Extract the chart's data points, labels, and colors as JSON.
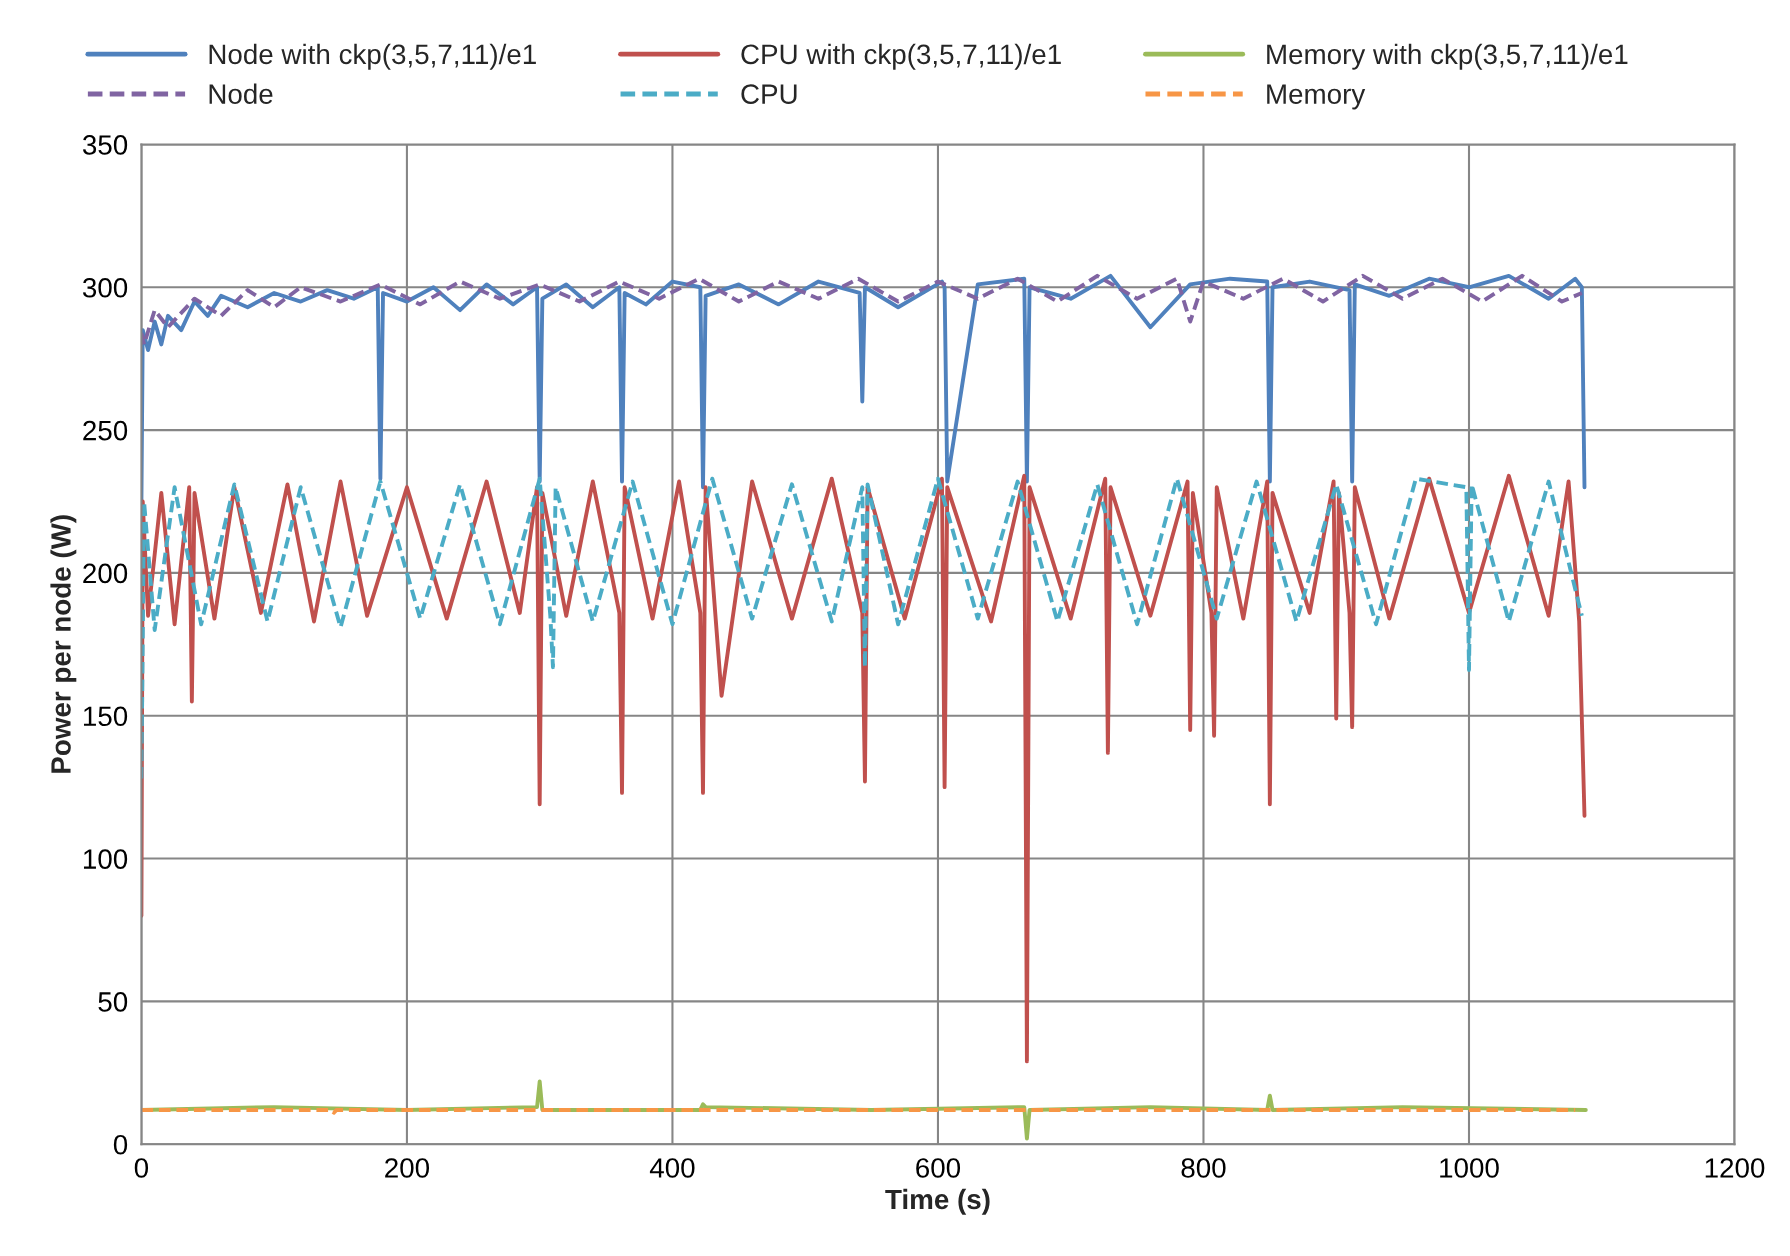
{
  "chart_data": {
    "type": "line",
    "xlabel": "Time (s)",
    "ylabel": "Power per node (W)",
    "xlim": [
      0,
      1200
    ],
    "xticks": [
      0,
      200,
      400,
      600,
      800,
      1000,
      1200
    ],
    "ylim": [
      0,
      350
    ],
    "yticks": [
      0,
      50,
      100,
      150,
      200,
      250,
      300,
      350
    ],
    "grid": true,
    "legend": "top",
    "marker": "none",
    "series": [
      {
        "name": "Node with ckp(3,5,7,11)/e1",
        "color": "#4f81bd",
        "line_style": "solid",
        "x": [
          0,
          1,
          5,
          10,
          15,
          20,
          30,
          40,
          50,
          60,
          80,
          100,
          120,
          140,
          160,
          178,
          180,
          182,
          200,
          220,
          240,
          260,
          280,
          298,
          300,
          302,
          320,
          340,
          360,
          362,
          364,
          380,
          400,
          421,
          423,
          425,
          450,
          480,
          510,
          541,
          543,
          545,
          570,
          603,
          605,
          607,
          630,
          665,
          667,
          669,
          700,
          730,
          760,
          790,
          820,
          848,
          850,
          852,
          880,
          910,
          912,
          914,
          940,
          970,
          1000,
          1030,
          1060,
          1080,
          1085,
          1087
        ],
        "values": [
          225,
          285,
          278,
          288,
          280,
          290,
          285,
          295,
          290,
          297,
          293,
          298,
          295,
          299,
          296,
          300,
          233,
          298,
          295,
          300,
          292,
          301,
          294,
          300,
          232,
          296,
          301,
          293,
          300,
          232,
          298,
          294,
          302,
          300,
          230,
          297,
          301,
          294,
          302,
          298,
          260,
          300,
          293,
          302,
          300,
          232,
          301,
          303,
          232,
          300,
          296,
          304,
          286,
          301,
          303,
          302,
          232,
          300,
          302,
          299,
          232,
          301,
          297,
          303,
          300,
          304,
          296,
          303,
          300,
          230
        ]
      },
      {
        "name": "CPU with ckp(3,5,7,11)/e1",
        "color": "#c0504d",
        "line_style": "solid",
        "x": [
          0,
          1,
          5,
          15,
          25,
          36,
          38,
          40,
          55,
          70,
          90,
          110,
          130,
          150,
          170,
          200,
          230,
          260,
          285,
          298,
          300,
          302,
          320,
          340,
          360,
          362,
          364,
          385,
          405,
          421,
          423,
          425,
          437,
          460,
          490,
          520,
          543,
          545,
          547,
          575,
          603,
          605,
          607,
          640,
          665,
          667,
          669,
          700,
          726,
          728,
          730,
          760,
          788,
          790,
          792,
          806,
          808,
          810,
          830,
          848,
          850,
          852,
          880,
          898,
          900,
          902,
          910,
          912,
          914,
          940,
          970,
          1000,
          1030,
          1060,
          1075,
          1083,
          1087
        ],
        "values": [
          80,
          225,
          185,
          228,
          182,
          230,
          155,
          228,
          184,
          230,
          186,
          231,
          183,
          232,
          185,
          230,
          184,
          232,
          186,
          230,
          119,
          228,
          185,
          232,
          186,
          123,
          230,
          184,
          232,
          186,
          123,
          230,
          157,
          232,
          184,
          233,
          186,
          127,
          230,
          184,
          233,
          125,
          230,
          183,
          234,
          29,
          230,
          184,
          233,
          137,
          230,
          185,
          232,
          145,
          228,
          186,
          143,
          230,
          184,
          232,
          119,
          228,
          186,
          232,
          149,
          228,
          186,
          146,
          230,
          184,
          233,
          186,
          234,
          185,
          232,
          183,
          115
        ]
      },
      {
        "name": "Memory with ckp(3,5,7,11)/e1",
        "color": "#9bbb59",
        "line_style": "solid",
        "x": [
          0,
          100,
          200,
          298,
          300,
          302,
          421,
          423,
          425,
          550,
          665,
          667,
          669,
          760,
          848,
          850,
          852,
          950,
          1088
        ],
        "values": [
          12,
          13,
          12,
          13,
          22,
          12,
          12,
          14,
          13,
          12,
          13,
          2,
          12,
          13,
          12,
          17,
          12,
          13,
          12
        ]
      },
      {
        "name": "Node",
        "color": "#8064a2",
        "line_style": "dashed",
        "x": [
          0,
          2,
          10,
          20,
          40,
          60,
          80,
          100,
          120,
          150,
          180,
          210,
          240,
          270,
          300,
          330,
          360,
          390,
          420,
          450,
          480,
          510,
          540,
          570,
          600,
          630,
          660,
          690,
          720,
          750,
          780,
          790,
          800,
          830,
          860,
          890,
          920,
          950,
          980,
          1010,
          1040,
          1070,
          1085
        ],
        "values": [
          284,
          280,
          292,
          286,
          296,
          290,
          299,
          293,
          300,
          295,
          301,
          294,
          302,
          296,
          301,
          295,
          302,
          296,
          303,
          295,
          302,
          296,
          303,
          295,
          302,
          296,
          303,
          295,
          304,
          296,
          303,
          288,
          302,
          296,
          303,
          295,
          304,
          296,
          303,
          295,
          304,
          295,
          298
        ]
      },
      {
        "name": "CPU",
        "color": "#4bacc6",
        "line_style": "dashed",
        "x": [
          0,
          2,
          10,
          25,
          45,
          70,
          95,
          120,
          150,
          180,
          210,
          240,
          270,
          300,
          308,
          310,
          312,
          340,
          370,
          400,
          430,
          460,
          490,
          520,
          543,
          545,
          547,
          570,
          600,
          630,
          660,
          690,
          720,
          750,
          780,
          810,
          840,
          870,
          900,
          930,
          960,
          998,
          1000,
          1002,
          1030,
          1060,
          1085
        ],
        "values": [
          128,
          225,
          180,
          230,
          182,
          231,
          183,
          230,
          181,
          232,
          184,
          231,
          182,
          233,
          185,
          167,
          230,
          183,
          232,
          182,
          233,
          184,
          231,
          183,
          230,
          167,
          231,
          182,
          233,
          184,
          232,
          183,
          231,
          182,
          233,
          184,
          232,
          183,
          231,
          182,
          233,
          230,
          166,
          231,
          183,
          232,
          185
        ]
      },
      {
        "name": "Memory",
        "color": "#f79646",
        "line_style": "dashed",
        "x": [
          0,
          100,
          143,
          145,
          147,
          300,
          500,
          700,
          900,
          1080
        ],
        "values": [
          12,
          12,
          12,
          11,
          12,
          12,
          12,
          12,
          12,
          12
        ]
      }
    ]
  }
}
